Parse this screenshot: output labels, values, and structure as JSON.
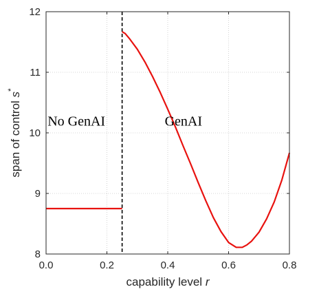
{
  "chart_data": {
    "type": "line",
    "xlabel": "capability level",
    "xlabel_var": "r",
    "ylabel": "span of control",
    "ylabel_var": "s",
    "ylabel_sup": "*",
    "xlim": [
      0,
      0.8
    ],
    "ylim": [
      8,
      12
    ],
    "xticks": [
      0,
      0.2,
      0.4,
      0.6,
      0.8
    ],
    "xtick_labels": [
      "0.0",
      "0.2",
      "0.4",
      "0.6",
      "0.8"
    ],
    "yticks": [
      8,
      9,
      10,
      11,
      12
    ],
    "ytick_labels": [
      "8",
      "9",
      "10",
      "11",
      "12"
    ],
    "grid": true,
    "line_color": "#e8120f",
    "threshold": {
      "x": 0.25,
      "style": "dashed",
      "color": "#000000"
    },
    "annotations": [
      {
        "text": "No GenAI",
        "x": 0.005,
        "y": 10.2
      },
      {
        "text": "GenAI",
        "x": 0.39,
        "y": 10.2
      }
    ],
    "series": [
      {
        "points": [
          [
            0.0,
            8.75
          ],
          [
            0.25,
            8.75
          ]
        ]
      },
      {
        "points": [
          [
            0.25,
            11.67
          ],
          [
            0.26,
            11.64
          ],
          [
            0.275,
            11.55
          ],
          [
            0.3,
            11.38
          ],
          [
            0.325,
            11.17
          ],
          [
            0.35,
            10.93
          ],
          [
            0.375,
            10.67
          ],
          [
            0.4,
            10.39
          ],
          [
            0.425,
            10.1
          ],
          [
            0.45,
            9.79
          ],
          [
            0.475,
            9.49
          ],
          [
            0.5,
            9.18
          ],
          [
            0.525,
            8.88
          ],
          [
            0.55,
            8.6
          ],
          [
            0.575,
            8.37
          ],
          [
            0.6,
            8.19
          ],
          [
            0.625,
            8.11
          ],
          [
            0.645,
            8.11
          ],
          [
            0.66,
            8.15
          ],
          [
            0.675,
            8.21
          ],
          [
            0.7,
            8.36
          ],
          [
            0.725,
            8.58
          ],
          [
            0.75,
            8.86
          ],
          [
            0.775,
            9.22
          ],
          [
            0.8,
            9.67
          ]
        ]
      }
    ]
  }
}
